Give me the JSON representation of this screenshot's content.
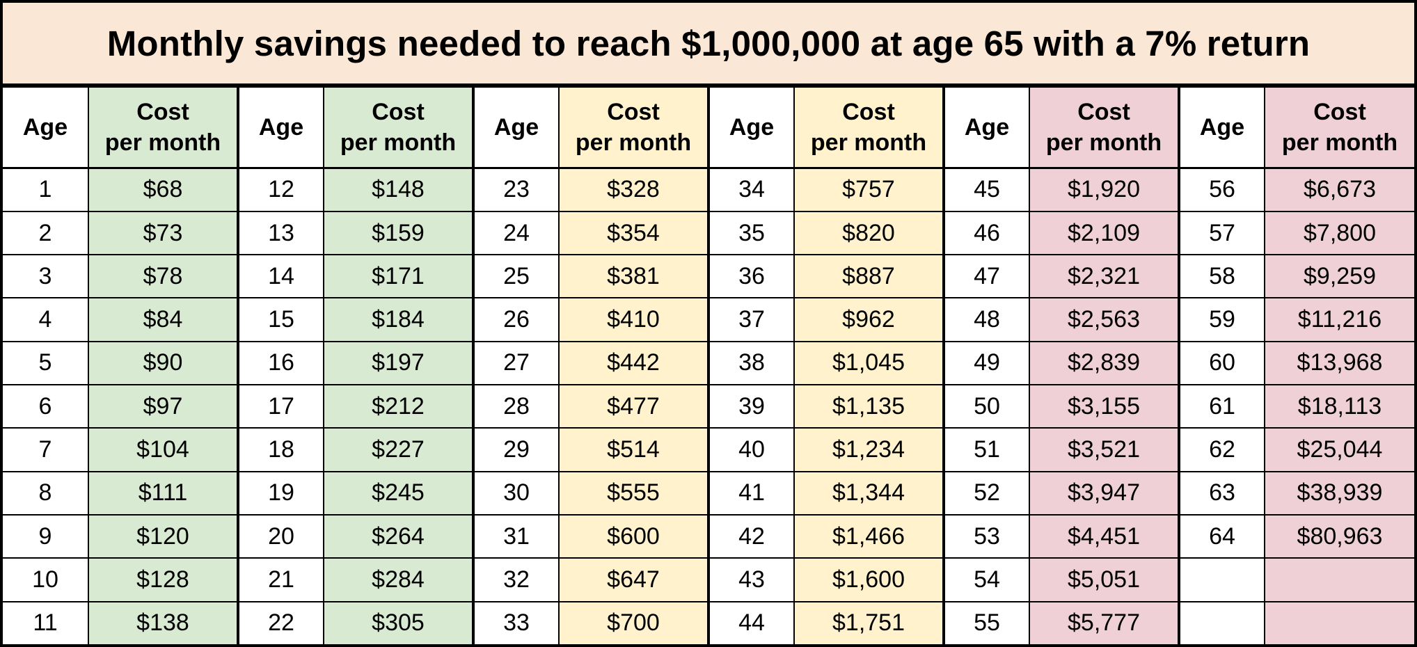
{
  "title": "Monthly savings needed to reach $1,000,000 at age 65 with a 7% return",
  "headers": {
    "age": "Age",
    "cost_line1": "Cost",
    "cost_line2": "per month"
  },
  "colors": {
    "title_background": "#fbe7d6",
    "green": "#d9ead3",
    "yellow": "#fff2cc",
    "red": "#efd0d6",
    "border": "#000000"
  },
  "column_groups": [
    {
      "color": "green",
      "rows": [
        {
          "age": "1",
          "cost": "$68"
        },
        {
          "age": "2",
          "cost": "$73"
        },
        {
          "age": "3",
          "cost": "$78"
        },
        {
          "age": "4",
          "cost": "$84"
        },
        {
          "age": "5",
          "cost": "$90"
        },
        {
          "age": "6",
          "cost": "$97"
        },
        {
          "age": "7",
          "cost": "$104"
        },
        {
          "age": "8",
          "cost": "$111"
        },
        {
          "age": "9",
          "cost": "$120"
        },
        {
          "age": "10",
          "cost": "$128"
        },
        {
          "age": "11",
          "cost": "$138"
        }
      ]
    },
    {
      "color": "green",
      "rows": [
        {
          "age": "12",
          "cost": "$148"
        },
        {
          "age": "13",
          "cost": "$159"
        },
        {
          "age": "14",
          "cost": "$171"
        },
        {
          "age": "15",
          "cost": "$184"
        },
        {
          "age": "16",
          "cost": "$197"
        },
        {
          "age": "17",
          "cost": "$212"
        },
        {
          "age": "18",
          "cost": "$227"
        },
        {
          "age": "19",
          "cost": "$245"
        },
        {
          "age": "20",
          "cost": "$264"
        },
        {
          "age": "21",
          "cost": "$284"
        },
        {
          "age": "22",
          "cost": "$305"
        }
      ]
    },
    {
      "color": "yellow",
      "rows": [
        {
          "age": "23",
          "cost": "$328"
        },
        {
          "age": "24",
          "cost": "$354"
        },
        {
          "age": "25",
          "cost": "$381"
        },
        {
          "age": "26",
          "cost": "$410"
        },
        {
          "age": "27",
          "cost": "$442"
        },
        {
          "age": "28",
          "cost": "$477"
        },
        {
          "age": "29",
          "cost": "$514"
        },
        {
          "age": "30",
          "cost": "$555"
        },
        {
          "age": "31",
          "cost": "$600"
        },
        {
          "age": "32",
          "cost": "$647"
        },
        {
          "age": "33",
          "cost": "$700"
        }
      ]
    },
    {
      "color": "yellow",
      "rows": [
        {
          "age": "34",
          "cost": "$757"
        },
        {
          "age": "35",
          "cost": "$820"
        },
        {
          "age": "36",
          "cost": "$887"
        },
        {
          "age": "37",
          "cost": "$962"
        },
        {
          "age": "38",
          "cost": "$1,045"
        },
        {
          "age": "39",
          "cost": "$1,135"
        },
        {
          "age": "40",
          "cost": "$1,234"
        },
        {
          "age": "41",
          "cost": "$1,344"
        },
        {
          "age": "42",
          "cost": "$1,466"
        },
        {
          "age": "43",
          "cost": "$1,600"
        },
        {
          "age": "44",
          "cost": "$1,751"
        }
      ]
    },
    {
      "color": "red",
      "rows": [
        {
          "age": "45",
          "cost": "$1,920"
        },
        {
          "age": "46",
          "cost": "$2,109"
        },
        {
          "age": "47",
          "cost": "$2,321"
        },
        {
          "age": "48",
          "cost": "$2,563"
        },
        {
          "age": "49",
          "cost": "$2,839"
        },
        {
          "age": "50",
          "cost": "$3,155"
        },
        {
          "age": "51",
          "cost": "$3,521"
        },
        {
          "age": "52",
          "cost": "$3,947"
        },
        {
          "age": "53",
          "cost": "$4,451"
        },
        {
          "age": "54",
          "cost": "$5,051"
        },
        {
          "age": "55",
          "cost": "$5,777"
        }
      ]
    },
    {
      "color": "red",
      "rows": [
        {
          "age": "56",
          "cost": "$6,673"
        },
        {
          "age": "57",
          "cost": "$7,800"
        },
        {
          "age": "58",
          "cost": "$9,259"
        },
        {
          "age": "59",
          "cost": "$11,216"
        },
        {
          "age": "60",
          "cost": "$13,968"
        },
        {
          "age": "61",
          "cost": "$18,113"
        },
        {
          "age": "62",
          "cost": "$25,044"
        },
        {
          "age": "63",
          "cost": "$38,939"
        },
        {
          "age": "64",
          "cost": "$80,963"
        },
        {
          "age": "",
          "cost": ""
        },
        {
          "age": "",
          "cost": ""
        }
      ]
    }
  ]
}
